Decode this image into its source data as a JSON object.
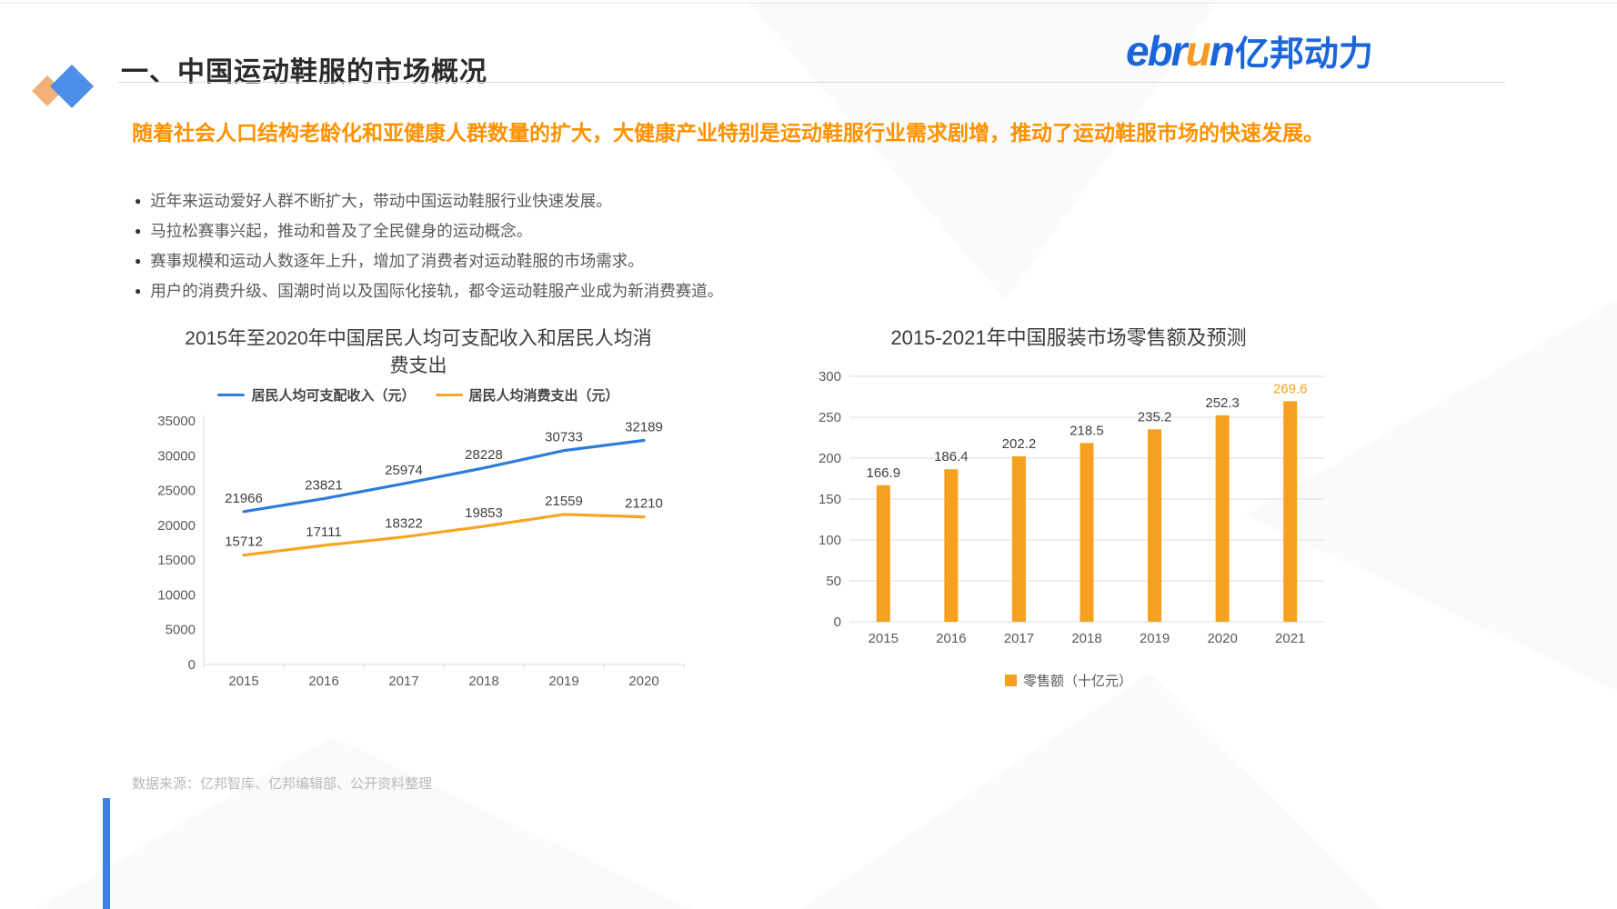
{
  "page": {
    "title": "一、中国运动鞋服的市场概况",
    "logo": {
      "l1": "ebr",
      "l2": "u",
      "l3": "n",
      "cn": "亿邦动力"
    },
    "highlight": "随着社会人口结构老龄化和亚健康人群数量的扩大，大健康产业特别是运动鞋服行业需求剧增，推动了运动鞋服市场的快速发展。",
    "bullets": [
      "近年来运动爱好人群不断扩大，带动中国运动鞋服行业快速发展。",
      "马拉松赛事兴起，推动和普及了全民健身的运动概念。",
      "赛事规模和运动人数逐年上升，增加了消费者对运动鞋服的市场需求。",
      "用户的消费升级、国潮时尚以及国际化接轨，都令运动鞋服产业成为新消费赛道。"
    ],
    "source": "数据来源：亿邦智库、亿邦编辑部、公开资料整理"
  },
  "colors": {
    "accent_orange": "#FF9100",
    "line_blue": "#2E7CD9",
    "line_orange": "#F5A623",
    "bar_orange": "#F5A01E",
    "logo_blue": "#1A66D9"
  },
  "chart_data": [
    {
      "type": "line",
      "title": "2015年至2020年中国居民人均可支配收入和居民人均消费支出",
      "categories": [
        "2015",
        "2016",
        "2017",
        "2018",
        "2019",
        "2020"
      ],
      "series": [
        {
          "name": "居民人均可支配收入（元）",
          "color": "#2E7CD9",
          "values": [
            21966,
            23821,
            25974,
            28228,
            30733,
            32189
          ]
        },
        {
          "name": "居民人均消费支出（元）",
          "color": "#F5A623",
          "values": [
            15712,
            17111,
            18322,
            19853,
            21559,
            21210
          ]
        }
      ],
      "xlabel": "",
      "ylabel": "",
      "ylim": [
        0,
        35000
      ],
      "ytick_step": 5000,
      "grid": false,
      "legend_position": "top"
    },
    {
      "type": "bar",
      "title": "2015-2021年中国服装市场零售额及预测",
      "categories": [
        "2015",
        "2016",
        "2017",
        "2018",
        "2019",
        "2020",
        "2021"
      ],
      "series": [
        {
          "name": "零售额（十亿元）",
          "color": "#F5A01E",
          "values": [
            166.9,
            186.4,
            202.2,
            218.5,
            235.2,
            252.3,
            269.6
          ]
        }
      ],
      "xlabel": "",
      "ylabel": "",
      "ylim": [
        0,
        300
      ],
      "ytick_step": 50,
      "grid": true,
      "legend_position": "bottom",
      "highlight_last_label_color": "#F5A01E"
    }
  ]
}
